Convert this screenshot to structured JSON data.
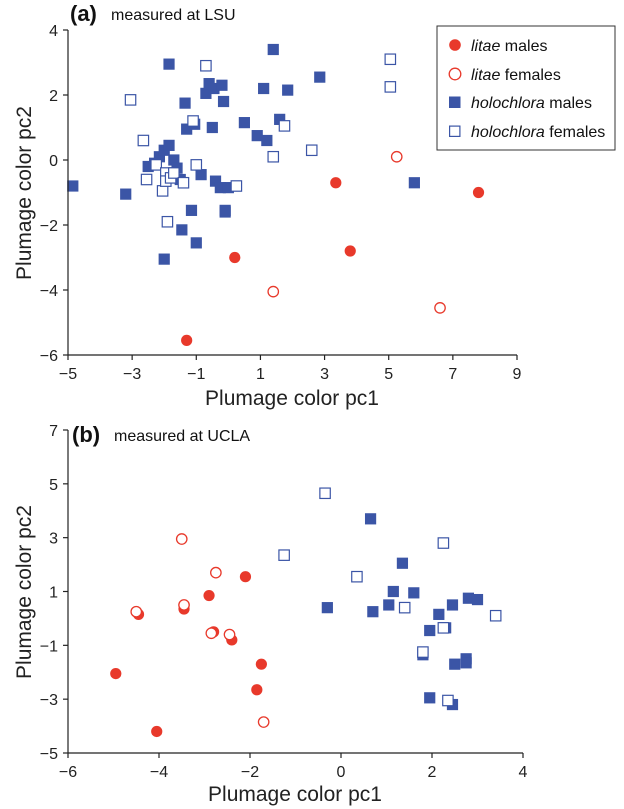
{
  "colors": {
    "litae": "#e8392b",
    "holochlora": "#3b55a6",
    "axis": "#222222"
  },
  "legend": [
    {
      "species": "litae",
      "sex": " males",
      "marker": "filled-circle"
    },
    {
      "species": "litae",
      "sex": " females",
      "marker": "open-circle"
    },
    {
      "species": "holochlora",
      "sex": " males",
      "marker": "filled-square"
    },
    {
      "species": "holochlora",
      "sex": " females",
      "marker": "open-square"
    }
  ],
  "chart_data": [
    {
      "type": "scatter",
      "panel_letter": "(a)",
      "title": "measured at LSU",
      "xlabel": "Plumage color pc1",
      "ylabel": "Plumage color pc2",
      "xlim": [
        -5,
        9
      ],
      "ylim": [
        -6,
        4
      ],
      "xticks": [
        -5,
        -3,
        -1,
        1,
        3,
        5,
        7,
        9
      ],
      "yticks": [
        -6,
        -4,
        -2,
        0,
        2,
        4
      ],
      "series": [
        {
          "name": "litae males",
          "marker": "filled-circle",
          "points": [
            [
              -1.3,
              -5.55
            ],
            [
              0.2,
              -3.0
            ],
            [
              3.35,
              -0.7
            ],
            [
              3.8,
              -2.8
            ],
            [
              7.8,
              -1.0
            ]
          ]
        },
        {
          "name": "litae females",
          "marker": "open-circle",
          "points": [
            [
              1.4,
              -4.05
            ],
            [
              5.25,
              0.1
            ],
            [
              6.6,
              -4.55
            ]
          ]
        },
        {
          "name": "holochlora males",
          "marker": "filled-square",
          "points": [
            [
              -4.85,
              -0.8
            ],
            [
              -3.2,
              -1.05
            ],
            [
              -2.5,
              -0.2
            ],
            [
              -2.3,
              -0.1
            ],
            [
              -2.15,
              0.1
            ],
            [
              -2.0,
              0.3
            ],
            [
              -2.0,
              -3.05
            ],
            [
              -1.85,
              0.45
            ],
            [
              -1.85,
              2.95
            ],
            [
              -1.7,
              0.0
            ],
            [
              -1.6,
              -0.25
            ],
            [
              -1.5,
              -0.6
            ],
            [
              -1.45,
              -2.15
            ],
            [
              -1.35,
              1.75
            ],
            [
              -1.3,
              0.95
            ],
            [
              -1.15,
              -1.55
            ],
            [
              -1.05,
              1.1
            ],
            [
              -1.0,
              -2.55
            ],
            [
              -0.85,
              -0.45
            ],
            [
              -0.7,
              2.05
            ],
            [
              -0.6,
              2.35
            ],
            [
              -0.5,
              1.0
            ],
            [
              -0.45,
              2.2
            ],
            [
              -0.4,
              -0.65
            ],
            [
              -0.25,
              -0.85
            ],
            [
              -0.2,
              2.3
            ],
            [
              -0.15,
              1.8
            ],
            [
              -0.1,
              -1.55
            ],
            [
              -0.1,
              -1.6
            ],
            [
              0.0,
              -0.85
            ],
            [
              0.5,
              1.15
            ],
            [
              0.9,
              0.75
            ],
            [
              1.1,
              2.2
            ],
            [
              1.2,
              0.6
            ],
            [
              1.4,
              3.4
            ],
            [
              1.6,
              1.25
            ],
            [
              1.85,
              2.15
            ],
            [
              2.85,
              2.55
            ],
            [
              5.8,
              -0.7
            ]
          ]
        },
        {
          "name": "holochlora females",
          "marker": "open-square",
          "points": [
            [
              -3.05,
              1.85
            ],
            [
              -2.65,
              0.6
            ],
            [
              -2.55,
              -0.6
            ],
            [
              -2.25,
              -0.15
            ],
            [
              -2.05,
              -0.95
            ],
            [
              -1.95,
              -0.4
            ],
            [
              -1.95,
              -0.65
            ],
            [
              -1.9,
              -1.9
            ],
            [
              -1.8,
              -0.55
            ],
            [
              -1.7,
              -0.4
            ],
            [
              -1.4,
              -0.7
            ],
            [
              -1.1,
              1.2
            ],
            [
              -1.0,
              -0.15
            ],
            [
              -0.7,
              2.9
            ],
            [
              0.25,
              -0.8
            ],
            [
              1.4,
              0.1
            ],
            [
              1.75,
              1.05
            ],
            [
              2.6,
              0.3
            ],
            [
              5.05,
              3.1
            ],
            [
              5.05,
              2.25
            ]
          ]
        }
      ]
    },
    {
      "type": "scatter",
      "panel_letter": "(b)",
      "title": "measured at UCLA",
      "xlabel": "Plumage color pc1",
      "ylabel": "Plumage color pc2",
      "xlim": [
        -6,
        4
      ],
      "ylim": [
        -5,
        7
      ],
      "xticks": [
        -6,
        -4,
        -2,
        0,
        2,
        4
      ],
      "yticks": [
        -5,
        -3,
        -1,
        1,
        3,
        5,
        7
      ],
      "series": [
        {
          "name": "litae males",
          "marker": "filled-circle",
          "points": [
            [
              -4.95,
              -2.05
            ],
            [
              -4.45,
              0.15
            ],
            [
              -4.05,
              -4.2
            ],
            [
              -3.45,
              0.35
            ],
            [
              -2.9,
              0.85
            ],
            [
              -2.8,
              -0.5
            ],
            [
              -2.4,
              -0.8
            ],
            [
              -2.1,
              1.55
            ],
            [
              -1.85,
              -2.65
            ],
            [
              -1.75,
              -1.7
            ]
          ]
        },
        {
          "name": "litae females",
          "marker": "open-circle",
          "points": [
            [
              -4.5,
              0.25
            ],
            [
              -3.5,
              2.95
            ],
            [
              -3.45,
              0.5
            ],
            [
              -2.85,
              -0.55
            ],
            [
              -2.75,
              1.7
            ],
            [
              -2.45,
              -0.6
            ],
            [
              -1.7,
              -3.85
            ]
          ]
        },
        {
          "name": "holochlora males",
          "marker": "filled-square",
          "points": [
            [
              -0.3,
              0.4
            ],
            [
              0.65,
              3.7
            ],
            [
              0.7,
              0.25
            ],
            [
              1.05,
              0.5
            ],
            [
              1.15,
              1.0
            ],
            [
              1.35,
              2.05
            ],
            [
              1.6,
              0.95
            ],
            [
              1.8,
              -1.35
            ],
            [
              1.95,
              -0.45
            ],
            [
              1.95,
              -2.95
            ],
            [
              2.15,
              0.15
            ],
            [
              2.3,
              -0.35
            ],
            [
              2.45,
              -3.2
            ],
            [
              2.45,
              0.5
            ],
            [
              2.5,
              -1.7
            ],
            [
              2.75,
              -1.5
            ],
            [
              2.75,
              -1.65
            ],
            [
              2.8,
              0.75
            ],
            [
              3.0,
              0.7
            ]
          ]
        },
        {
          "name": "holochlora females",
          "marker": "open-square",
          "points": [
            [
              -0.35,
              4.65
            ],
            [
              -1.25,
              2.35
            ],
            [
              0.35,
              1.55
            ],
            [
              1.4,
              0.4
            ],
            [
              1.8,
              -1.25
            ],
            [
              2.25,
              2.8
            ],
            [
              2.25,
              -0.35
            ],
            [
              2.35,
              -3.05
            ],
            [
              3.4,
              0.1
            ]
          ]
        }
      ]
    }
  ]
}
